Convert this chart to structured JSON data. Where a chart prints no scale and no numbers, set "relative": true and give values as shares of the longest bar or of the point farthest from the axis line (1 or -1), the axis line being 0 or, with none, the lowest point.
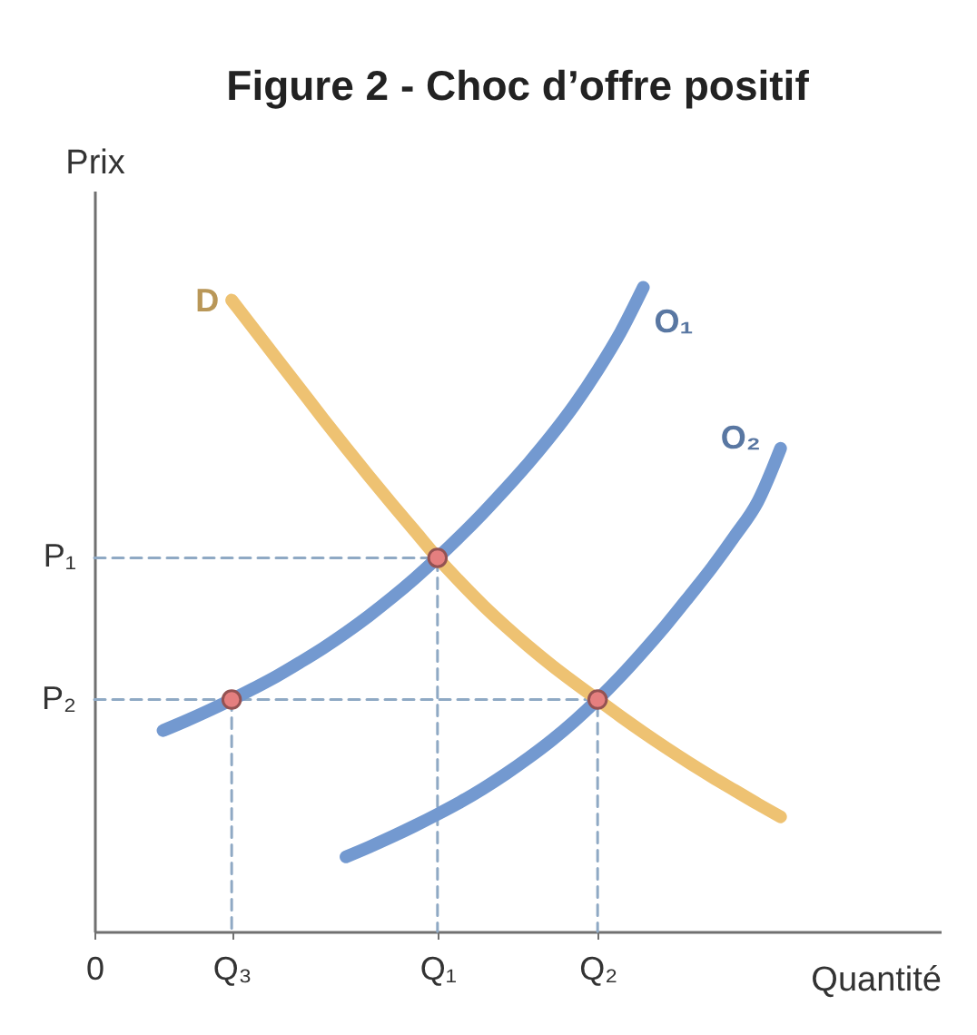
{
  "chart_data": {
    "type": "line",
    "title": "Figure 2 - Choc d’offre positif",
    "xlabel": "Quantité",
    "ylabel": "Prix",
    "relative": true,
    "categories": [
      "0",
      null,
      null,
      null,
      null,
      null,
      "Q₃",
      null,
      null,
      null,
      null,
      null,
      null,
      null,
      null,
      "Q₁",
      null,
      null,
      null,
      null,
      null,
      null,
      "Q₂",
      null,
      null,
      null,
      null,
      null,
      null,
      null,
      null,
      null,
      null,
      null,
      null,
      null,
      null,
      null
    ],
    "grid": false,
    "legend": false,
    "series": [
      {
        "name": "P₁",
        "type": "line",
        "line_style": "dashed",
        "color": "#8fa9c4",
        "x": [
          "0",
          "Q₁",
          "Q₁"
        ],
        "values": [
          0.58,
          0.58,
          0
        ]
      },
      {
        "name": "P₂",
        "type": "line",
        "line_style": "dashed",
        "color": "#8fa9c4",
        "x": [
          "0",
          "Q₂",
          "Q₂"
        ],
        "values": [
          0.36,
          0.36,
          0
        ]
      },
      {
        "type": "line",
        "line_style": "dashed",
        "color": "#8fa9c4",
        "x": [
          "Q₃",
          "Q₃"
        ],
        "values": [
          0.36,
          0
        ]
      },
      {
        "name": "D",
        "color": "#eec272",
        "values": [
          null,
          null,
          null,
          null,
          null,
          null,
          0.98,
          0.934,
          0.888,
          0.842,
          0.796,
          0.751,
          0.707,
          0.664,
          0.622,
          0.58,
          0.542,
          0.506,
          0.473,
          0.442,
          0.413,
          0.386,
          0.36,
          0.334,
          0.309,
          0.285,
          0.262,
          0.24,
          0.219,
          0.198,
          0.178,
          null,
          null,
          null,
          null,
          null,
          null,
          null
        ]
      },
      {
        "name": "O₁",
        "color": "#7399d0",
        "values": [
          null,
          null,
          null,
          0.312,
          0.327,
          0.343,
          0.36,
          0.378,
          0.397,
          0.418,
          0.44,
          0.464,
          0.49,
          0.518,
          0.548,
          0.58,
          0.614,
          0.65,
          0.688,
          0.728,
          0.771,
          0.818,
          0.871,
          0.93,
          1.0,
          null,
          null,
          null,
          null,
          null,
          null,
          null,
          null,
          null,
          null,
          null,
          null,
          null
        ]
      },
      {
        "name": "O₂",
        "color": "#7399d0",
        "values": [
          null,
          null,
          null,
          null,
          null,
          null,
          null,
          null,
          null,
          null,
          null,
          0.116,
          0.131,
          0.147,
          0.164,
          0.182,
          0.201,
          0.222,
          0.245,
          0.27,
          0.297,
          0.327,
          0.36,
          0.396,
          0.435,
          0.476,
          0.52,
          0.565,
          0.614,
          0.667,
          0.75,
          null,
          null,
          null,
          null,
          null,
          null,
          null
        ]
      },
      {
        "type": "scatter",
        "marker": "circle",
        "color": "#e57f7f",
        "x": [
          "Q₃",
          "Q₁",
          "Q₂"
        ],
        "values": [
          0.36,
          0.58,
          0.36
        ]
      }
    ]
  }
}
